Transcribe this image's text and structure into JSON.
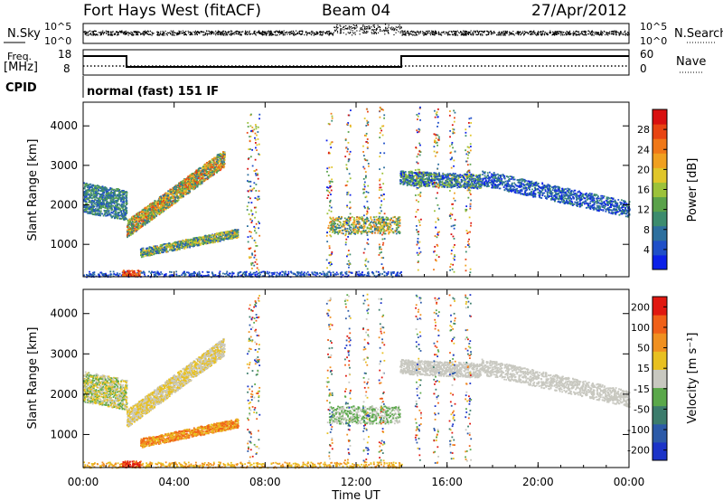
{
  "header": {
    "station": "Fort Hays West (fitACF)",
    "beam": "Beam 04",
    "date": "27/Apr/2012"
  },
  "strip": {
    "nsky_label": "N.Sky",
    "nsearch_label": "N.Search",
    "nsky_ticks": [
      "10^5",
      "10^0"
    ],
    "nsearch_ticks": [
      "10^5",
      "10^0"
    ],
    "freq_label_top": "Freq.",
    "freq_label_bottom": "[MHz]",
    "freq_ticks": [
      "18",
      "8"
    ],
    "nave_label": "Nave",
    "nave_ticks": [
      "60",
      "0"
    ],
    "cpid_label": "CPID",
    "cpid_text": "normal (fast) 151 IF"
  },
  "chart_data": [
    {
      "type": "heatmap",
      "name": "power",
      "ylabel": "Slant Range [km]",
      "yticks": [
        1000,
        2000,
        3000,
        4000
      ],
      "ylim": [
        180,
        4600
      ],
      "xlim": [
        0,
        24
      ],
      "colorbar": {
        "label": "Power [dB]",
        "ticks": [
          "4",
          "8",
          "12",
          "16",
          "20",
          "24",
          "28"
        ],
        "colors": [
          "#0b20e8",
          "#1f4fc8",
          "#2d6f9e",
          "#3c8c6e",
          "#5aa24a",
          "#9cc23a",
          "#e0c62a",
          "#f0a020",
          "#f07818",
          "#e84412",
          "#d81010"
        ]
      }
    },
    {
      "type": "heatmap",
      "name": "velocity",
      "ylabel": "Slant Range [km]",
      "yticks": [
        1000,
        2000,
        3000,
        4000
      ],
      "ylim": [
        180,
        4600
      ],
      "xlim": [
        0,
        24
      ],
      "colorbar": {
        "label": "Velocity [m s⁻¹]",
        "ticks": [
          "200",
          "100",
          "50",
          "15",
          "-15",
          "-50",
          "-100",
          "-200"
        ],
        "colors": [
          "#1c34c8",
          "#2c5aa8",
          "#3c7c6c",
          "#5aa84a",
          "#c8c8c0",
          "#e8c020",
          "#f09020",
          "#f06018",
          "#e01810"
        ]
      }
    }
  ],
  "xaxis": {
    "label": "Time UT",
    "ticks": [
      "00:00",
      "04:00",
      "08:00",
      "12:00",
      "16:00",
      "20:00",
      "00:00"
    ]
  }
}
